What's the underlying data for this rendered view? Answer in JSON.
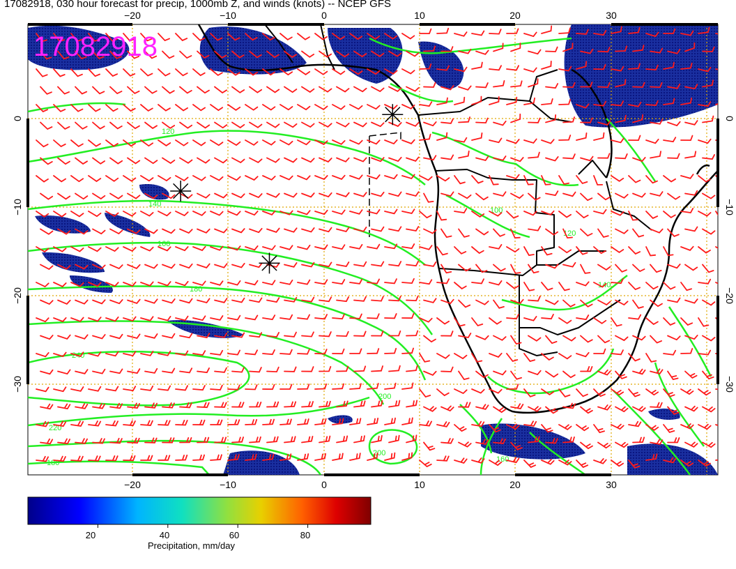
{
  "title": "17082918, 030 hour forecast for precip, 1000mb Z, and winds (knots) -- NCEP GFS",
  "stamp": "17082918",
  "colors": {
    "stamp": "#ff22ff",
    "contour": "#22ee22",
    "barb": "#ff1a1a",
    "land": "#000000",
    "grid": "#e0a800",
    "ocean": "#ffffff"
  },
  "axes": {
    "lon_ticks": [
      "−20",
      "−10",
      "0",
      "10",
      "20",
      "30"
    ],
    "lat_ticks": [
      "0",
      "−10",
      "−20",
      "−30"
    ],
    "lon_range": [
      -30,
      40
    ],
    "lat_range": [
      -40,
      10
    ]
  },
  "contour_labels": [
    "120",
    "140",
    "160",
    "180",
    "200",
    "220",
    "240",
    "180",
    "140",
    "120",
    "100",
    "160",
    "200"
  ],
  "storm_markers": [
    {
      "lon": 7,
      "lat": 0
    },
    {
      "lon": -14.5,
      "lat": -8.5
    },
    {
      "lon": -5.5,
      "lat": -16.5
    }
  ],
  "colorbar": {
    "label": "Precipitation, mm/day",
    "ticks": [
      "20",
      "40",
      "60",
      "80"
    ],
    "min": 0,
    "max": 98,
    "tick_values": [
      20,
      40,
      60,
      80
    ]
  }
}
